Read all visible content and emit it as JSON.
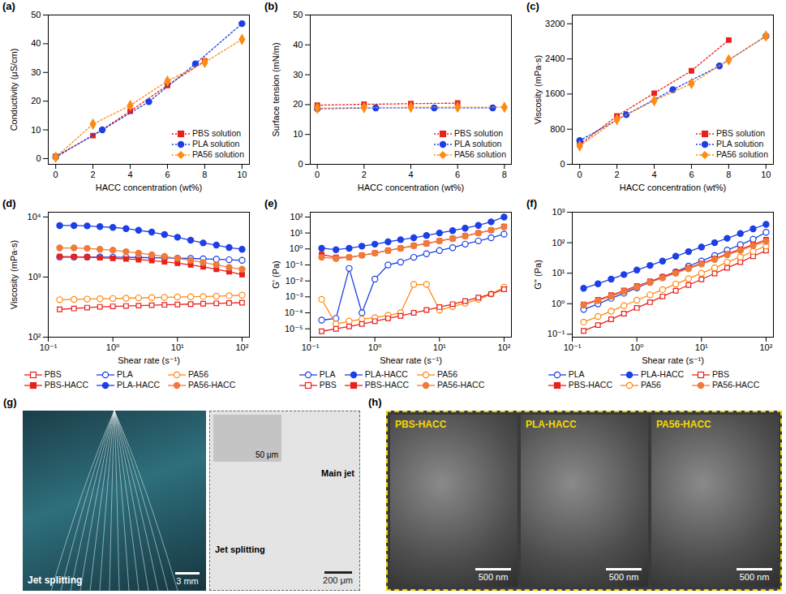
{
  "chart_data": [
    {
      "type": "line",
      "label": "(a)",
      "x_label": "HACC concentration (wt%)",
      "y_label": "Conductivity (μS/cm)",
      "xlim": [
        -0.4,
        10.4
      ],
      "xticks": [
        0,
        2,
        4,
        6,
        8,
        10
      ],
      "ylim": [
        -2,
        50
      ],
      "yticks": [
        0,
        10,
        20,
        30,
        40,
        50
      ],
      "legend": "bottom-right",
      "line_style": "dotted",
      "series": [
        {
          "name": "PBS solution",
          "color": "#e8211c",
          "marker": "square",
          "x": [
            0,
            2,
            4,
            6,
            8
          ],
          "values": [
            0.8,
            8,
            16.5,
            25.5,
            34
          ]
        },
        {
          "name": "PLA solution",
          "color": "#1c3fe6",
          "marker": "circle",
          "x": [
            0,
            2.5,
            5,
            7.5,
            10
          ],
          "values": [
            0.5,
            10,
            19.8,
            33,
            47
          ]
        },
        {
          "name": "PA56 solution",
          "color": "#ff8a14",
          "marker": "diamond",
          "x": [
            0,
            2,
            4,
            6,
            8,
            10
          ],
          "values": [
            0.5,
            12,
            18.5,
            27,
            33.5,
            41.5
          ]
        }
      ]
    },
    {
      "type": "line",
      "label": "(b)",
      "x_label": "HACC concentration (wt%)",
      "y_label": "Surface tension (mN/m)",
      "xlim": [
        -0.3,
        8.3
      ],
      "xticks": [
        0,
        2,
        4,
        6,
        8
      ],
      "ylim": [
        0,
        50
      ],
      "yticks": [
        0,
        10,
        20,
        30,
        40,
        50
      ],
      "legend": "bottom-right",
      "line_style": "dotted",
      "series": [
        {
          "name": "PBS solution",
          "color": "#e8211c",
          "marker": "square",
          "x": [
            0,
            2,
            4,
            6
          ],
          "values": [
            19.8,
            20.1,
            20.3,
            20.5
          ]
        },
        {
          "name": "PLA solution",
          "color": "#1c3fe6",
          "marker": "circle",
          "x": [
            0,
            2.5,
            5,
            7.5
          ],
          "values": [
            18.6,
            18.9,
            18.9,
            18.9
          ]
        },
        {
          "name": "PA56 solution",
          "color": "#ff8a14",
          "marker": "diamond",
          "x": [
            0,
            2,
            4,
            6,
            8
          ],
          "values": [
            18.8,
            19.0,
            19.1,
            19.1,
            19.1
          ]
        }
      ]
    },
    {
      "type": "line",
      "label": "(c)",
      "x_label": "HACC concentration (wt%)",
      "y_label": "Viscosity (mPa·s)",
      "xlim": [
        -0.4,
        10.4
      ],
      "xticks": [
        0,
        2,
        4,
        6,
        8,
        10
      ],
      "ylim": [
        0,
        3400
      ],
      "yticks": [
        0,
        800,
        1600,
        2400,
        3200
      ],
      "legend": "bottom-right",
      "line_style": "dotted",
      "series": [
        {
          "name": "PBS solution",
          "color": "#e8211c",
          "marker": "square",
          "x": [
            0,
            2,
            4,
            6,
            8
          ],
          "values": [
            450,
            1100,
            1620,
            2130,
            2830
          ]
        },
        {
          "name": "PLA solution",
          "color": "#1c3fe6",
          "marker": "circle",
          "x": [
            0,
            2.5,
            5,
            7.5,
            10
          ],
          "values": [
            540,
            1130,
            1700,
            2240,
            2920
          ]
        },
        {
          "name": "PA56 solution",
          "color": "#ff8a14",
          "marker": "diamond",
          "x": [
            0,
            2,
            4,
            6,
            8,
            10
          ],
          "values": [
            420,
            1020,
            1450,
            1840,
            2380,
            2920
          ]
        }
      ]
    },
    {
      "type": "line",
      "label": "(d)",
      "x_label": "Shear rate (s⁻¹)",
      "y_label": "Viscosity (mPa·s)",
      "log": true,
      "xlim": [
        0.1,
        130
      ],
      "xticks": [
        {
          "value": 0.1,
          "label": "10⁻¹"
        },
        {
          "value": 1,
          "label": "10⁰"
        },
        {
          "value": 10,
          "label": "10¹"
        },
        {
          "value": 100,
          "label": "10²"
        }
      ],
      "ylim": [
        100,
        12000
      ],
      "yticks": [
        {
          "value": 100,
          "label": "10²"
        },
        {
          "value": 1000,
          "label": "10³"
        },
        {
          "value": 10000,
          "label": "10⁴"
        }
      ],
      "legend": "bottom",
      "line_style": "solid",
      "x": [
        0.15,
        0.25,
        0.4,
        0.63,
        1,
        1.6,
        2.5,
        4,
        6.3,
        10,
        16,
        25,
        40,
        63,
        100
      ],
      "series": [
        {
          "name": "PBS",
          "color": "#e8211c",
          "marker": "open_square",
          "values": [
            290,
            300,
            310,
            320,
            325,
            330,
            335,
            340,
            345,
            350,
            355,
            360,
            365,
            370,
            375
          ]
        },
        {
          "name": "PLA",
          "color": "#1c3fe6",
          "marker": "open_circle",
          "values": [
            2150,
            2150,
            2150,
            2150,
            2140,
            2130,
            2120,
            2100,
            2080,
            2060,
            2040,
            2010,
            1980,
            1940,
            1900
          ]
        },
        {
          "name": "PA56",
          "color": "#ff8a14",
          "marker": "open_circle",
          "values": [
            420,
            425,
            430,
            435,
            440,
            445,
            450,
            455,
            460,
            465,
            470,
            475,
            480,
            490,
            500
          ]
        },
        {
          "name": "PBS-HACC",
          "color": "#e8211c",
          "marker": "square",
          "values": [
            2200,
            2180,
            2150,
            2100,
            2050,
            2000,
            1950,
            1880,
            1800,
            1700,
            1600,
            1480,
            1350,
            1230,
            1100
          ]
        },
        {
          "name": "PLA-HACC",
          "color": "#1c3fe6",
          "marker": "circle",
          "values": [
            7200,
            7200,
            7100,
            6900,
            6700,
            6400,
            6000,
            5600,
            5100,
            4600,
            4100,
            3700,
            3400,
            3100,
            2900
          ]
        },
        {
          "name": "PA56-HACC",
          "color": "#f07a3a",
          "marker": "circle",
          "values": [
            3050,
            3050,
            3000,
            2900,
            2800,
            2650,
            2500,
            2350,
            2200,
            2050,
            1900,
            1750,
            1600,
            1450,
            1350
          ]
        }
      ]
    },
    {
      "type": "line",
      "label": "(e)",
      "x_label": "Shear rate (s⁻¹)",
      "y_label": "G' (Pa)",
      "log": true,
      "xlim": [
        0.1,
        130
      ],
      "xticks": [
        {
          "value": 0.1,
          "label": "10⁻¹"
        },
        {
          "value": 1,
          "label": "10⁰"
        },
        {
          "value": 10,
          "label": "10¹"
        },
        {
          "value": 100,
          "label": "10²"
        }
      ],
      "ylim": [
        3e-06,
        200
      ],
      "yticks": [
        {
          "value": 1e-05,
          "label": "10⁻⁵"
        },
        {
          "value": 0.0001,
          "label": "10⁻⁴"
        },
        {
          "value": 0.001,
          "label": "10⁻³"
        },
        {
          "value": 0.01,
          "label": "10⁻²"
        },
        {
          "value": 0.1,
          "label": "10⁻¹"
        },
        {
          "value": 1,
          "label": "10⁰"
        },
        {
          "value": 10,
          "label": "10¹"
        },
        {
          "value": 100,
          "label": "10²"
        }
      ],
      "legend": "bottom",
      "line_style": "solid",
      "x": [
        0.15,
        0.25,
        0.4,
        0.63,
        1,
        1.6,
        2.5,
        4,
        6.3,
        10,
        16,
        25,
        40,
        63,
        100
      ],
      "series": [
        {
          "name": "PLA",
          "color": "#1c3fe6",
          "marker": "open_circle",
          "values": [
            3.5e-05,
            4.5e-05,
            0.06,
            0.0001,
            0.013,
            0.1,
            0.15,
            0.3,
            0.5,
            0.8,
            1.2,
            2,
            3.2,
            5,
            8.5
          ]
        },
        {
          "name": "PLA-HACC",
          "color": "#1c3fe6",
          "marker": "circle",
          "values": [
            1.1,
            0.9,
            1.1,
            1.5,
            2,
            2.8,
            3.8,
            5,
            7,
            10,
            14,
            20,
            30,
            50,
            100
          ]
        },
        {
          "name": "PA56",
          "color": "#ff8a14",
          "marker": "open_circle",
          "values": [
            0.0007,
            2e-05,
            3e-05,
            4e-05,
            5e-05,
            7e-05,
            0.0001,
            0.006,
            0.006,
            0.00015,
            0.00025,
            0.0004,
            0.0007,
            0.0015,
            0.004
          ]
        },
        {
          "name": "PBS",
          "color": "#e8211c",
          "marker": "open_square",
          "values": [
            7e-06,
            1e-05,
            1.4e-05,
            2e-05,
            3e-05,
            4.5e-05,
            6.5e-05,
            0.0001,
            0.00015,
            0.00023,
            0.00035,
            0.00055,
            0.0009,
            0.0015,
            0.003
          ]
        },
        {
          "name": "PBS-HACC",
          "color": "#e8211c",
          "marker": "square",
          "values": [
            0.45,
            0.3,
            0.3,
            0.4,
            0.55,
            0.8,
            1.1,
            1.6,
            2.2,
            3.2,
            4.5,
            6.5,
            10,
            15,
            25
          ]
        },
        {
          "name": "PA56-HACC",
          "color": "#f07a3a",
          "marker": "circle",
          "values": [
            0.3,
            0.25,
            0.3,
            0.4,
            0.55,
            0.8,
            1.1,
            1.6,
            2.2,
            3.2,
            4.5,
            6.5,
            10,
            15,
            24
          ]
        }
      ]
    },
    {
      "type": "line",
      "label": "(f)",
      "x_label": "Shear rate (s⁻¹)",
      "y_label": "G'' (Pa)",
      "log": true,
      "xlim": [
        0.1,
        130
      ],
      "xticks": [
        {
          "value": 0.1,
          "label": "10⁻¹"
        },
        {
          "value": 1,
          "label": "10⁰"
        },
        {
          "value": 10,
          "label": "10¹"
        },
        {
          "value": 100,
          "label": "10²"
        }
      ],
      "ylim": [
        0.08,
        1000
      ],
      "yticks": [
        {
          "value": 0.1,
          "label": "10⁻¹"
        },
        {
          "value": 1,
          "label": "10⁰"
        },
        {
          "value": 10,
          "label": "10¹"
        },
        {
          "value": 100,
          "label": "10²"
        },
        {
          "value": 1000,
          "label": "10³"
        }
      ],
      "legend": "bottom",
      "line_style": "solid",
      "x": [
        0.15,
        0.25,
        0.4,
        0.63,
        1,
        1.6,
        2.5,
        4,
        6.3,
        10,
        16,
        25,
        40,
        63,
        100
      ],
      "series": [
        {
          "name": "PLA",
          "color": "#1c3fe6",
          "marker": "open_circle",
          "values": [
            0.65,
            0.98,
            1.5,
            2.2,
            3.3,
            5,
            7.5,
            11,
            17,
            25,
            38,
            57,
            86,
            130,
            220
          ]
        },
        {
          "name": "PLA-HACC",
          "color": "#1c3fe6",
          "marker": "circle",
          "values": [
            3.2,
            4.5,
            6.4,
            9,
            12.7,
            18,
            25,
            36,
            51,
            72,
            100,
            140,
            200,
            285,
            400
          ]
        },
        {
          "name": "PBS",
          "color": "#e8211c",
          "marker": "open_square",
          "values": [
            0.129,
            0.199,
            0.307,
            0.473,
            0.73,
            1.12,
            1.73,
            2.67,
            4.1,
            6.3,
            9.8,
            15,
            23,
            36,
            55
          ]
        },
        {
          "name": "PBS-HACC",
          "color": "#e8211c",
          "marker": "square",
          "values": [
            0.95,
            1.35,
            1.9,
            2.7,
            3.8,
            5.4,
            7.6,
            11,
            15,
            21,
            30,
            43,
            61,
            87,
            125
          ]
        },
        {
          "name": "PA56",
          "color": "#ff8a14",
          "marker": "open_circle",
          "values": [
            0.25,
            0.38,
            0.57,
            0.86,
            1.3,
            1.95,
            2.9,
            4.4,
            6.6,
            10,
            15,
            23,
            34,
            52,
            79
          ]
        },
        {
          "name": "PA56-HACC",
          "color": "#f07a3a",
          "marker": "circle",
          "values": [
            0.9,
            1.25,
            1.75,
            2.5,
            3.5,
            5,
            7,
            10,
            14,
            20,
            28,
            40,
            56,
            80,
            110
          ]
        }
      ]
    }
  ],
  "image_panels": [
    {
      "label": "(g)",
      "photo": {
        "annotation": "Jet splitting",
        "scale_bar": "3 mm"
      },
      "micrograph": {
        "annotations": [
          "Main jet",
          "Jet splitting"
        ],
        "scale_bar": "200 μm",
        "inset_scale_bar": "50 μm"
      }
    },
    {
      "label": "(h)",
      "images": [
        {
          "title": "PBS-HACC",
          "scale_bar": "500 nm"
        },
        {
          "title": "PLA-HACC",
          "scale_bar": "500 nm"
        },
        {
          "title": "PA56-HACC",
          "scale_bar": "500 nm"
        }
      ]
    }
  ]
}
